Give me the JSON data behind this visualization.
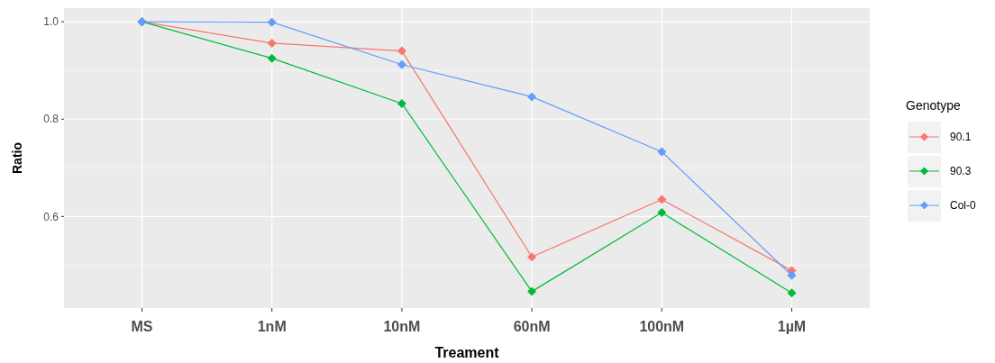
{
  "chart_data": {
    "type": "line",
    "xlabel": "Treament",
    "ylabel": "Ratio",
    "legend_title": "Genotype",
    "legend": "right",
    "grid": true,
    "marker": "diamond",
    "line_style": "solid",
    "categories": [
      "MS",
      "1nM",
      "10nM",
      "60nM",
      "100nM",
      "1µM"
    ],
    "ylim": [
      0.412,
      1.028
    ],
    "yticks": [
      {
        "value": 0.6,
        "label": "0.6"
      },
      {
        "value": 0.8,
        "label": "0.8"
      },
      {
        "value": 1.0,
        "label": "1.0"
      }
    ],
    "series": [
      {
        "name": "90.1",
        "color": "#f8766d",
        "values": [
          1.0,
          0.956,
          0.94,
          0.517,
          0.635,
          0.489
        ]
      },
      {
        "name": "90.3",
        "color": "#00ba38",
        "values": [
          1.0,
          0.925,
          0.832,
          0.446,
          0.608,
          0.443
        ]
      },
      {
        "name": "Col-0",
        "color": "#619cff",
        "values": [
          1.0,
          0.999,
          0.912,
          0.846,
          0.733,
          0.479
        ]
      }
    ]
  }
}
